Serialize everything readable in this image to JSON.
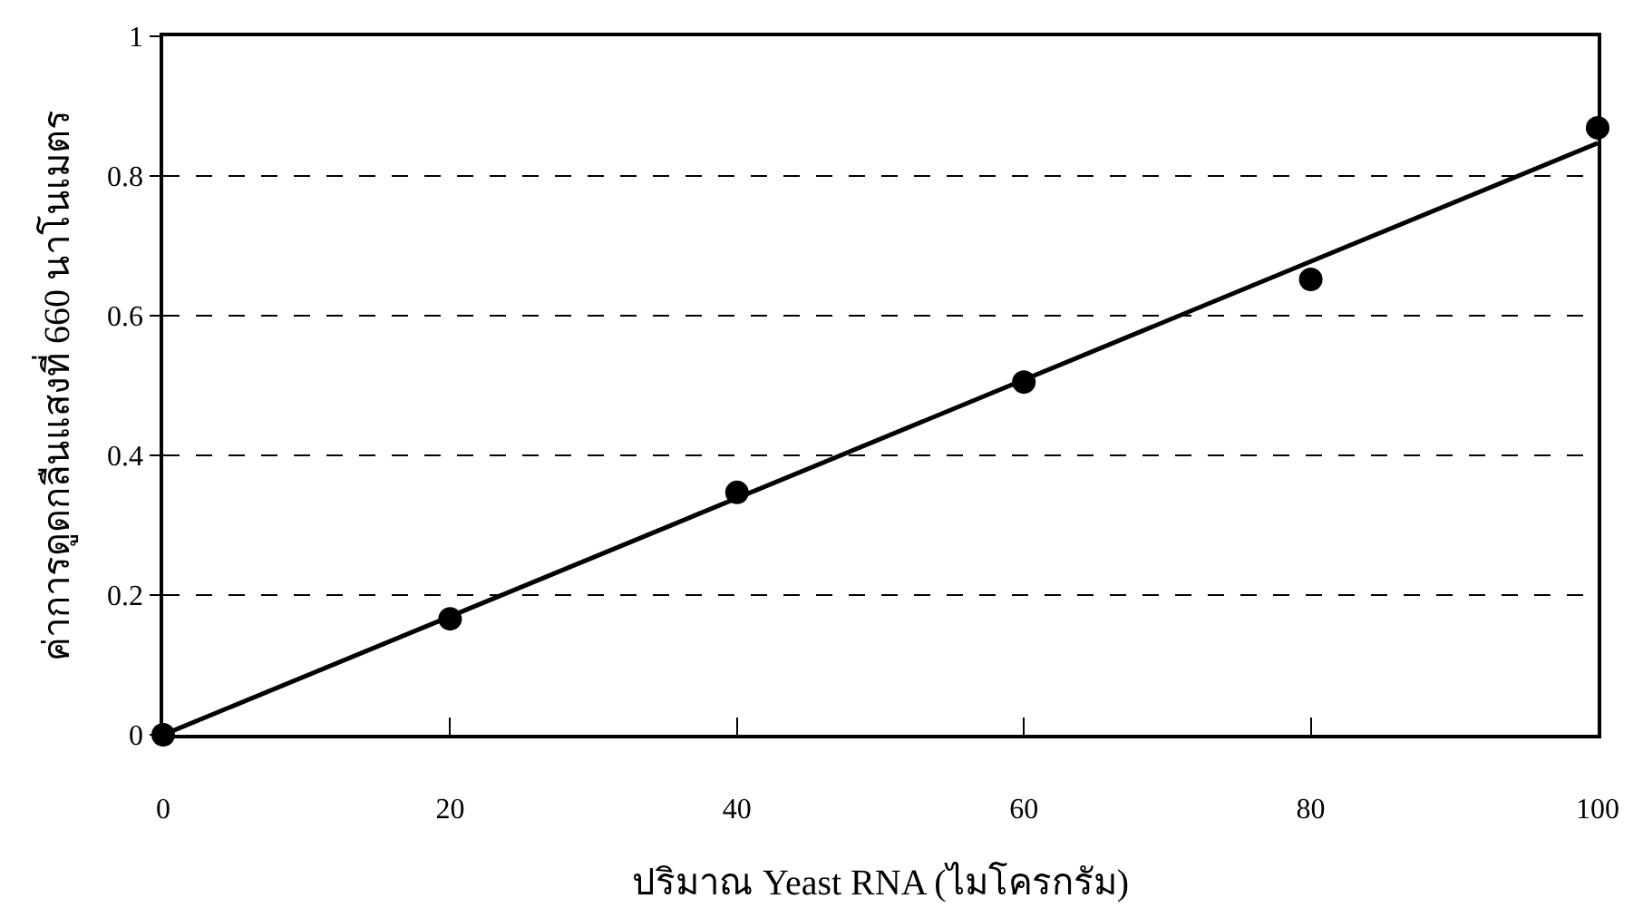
{
  "chart_data": {
    "type": "scatter",
    "xlabel": "ปริมาณ Yeast RNA (ไมโครกรัม)",
    "ylabel": "ค่าการดูดกลืนแสงที่ 660 นาโนเมตร",
    "x": [
      0,
      20,
      40,
      60,
      80,
      100
    ],
    "series": [
      {
        "color": "#000000",
        "values": [
          0,
          0.166,
          0.347,
          0.505,
          0.652,
          0.869
        ],
        "marker": "circle"
      },
      {
        "type": "line",
        "color": "#000000",
        "x": [
          0,
          100
        ],
        "values": [
          0,
          0.847
        ],
        "marker": "none",
        "line_style": "solid"
      }
    ],
    "xlim": [
      0,
      100
    ],
    "xticks": [
      0,
      20,
      40,
      60,
      80,
      100
    ],
    "ylim": [
      0,
      1
    ],
    "yticks": [
      0,
      {
        "value": 0.2,
        "label": "0.2"
      },
      {
        "value": 0.4,
        "label": "0.4"
      },
      {
        "value": 0.6,
        "label": "0.6"
      },
      {
        "value": 0.8,
        "label": "0.8"
      },
      1
    ],
    "grid": "y"
  }
}
